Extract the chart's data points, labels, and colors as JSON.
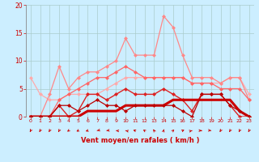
{
  "x": [
    0,
    1,
    2,
    3,
    4,
    5,
    6,
    7,
    8,
    9,
    10,
    11,
    12,
    13,
    14,
    15,
    16,
    17,
    18,
    19,
    20,
    21,
    22,
    23
  ],
  "series": [
    {
      "y": [
        7,
        4,
        3,
        3,
        4,
        4,
        4,
        4,
        5,
        6,
        7,
        7,
        7,
        7,
        7,
        7,
        7,
        6,
        6,
        6,
        6,
        7,
        7,
        4
      ],
      "color": "#ffaaaa",
      "lw": 0.9,
      "marker": "D",
      "ms": 2
    },
    {
      "y": [
        0,
        0,
        4,
        9,
        5,
        7,
        8,
        8,
        9,
        10,
        14,
        11,
        11,
        11,
        18,
        16,
        11,
        7,
        7,
        7,
        6,
        7,
        7,
        3
      ],
      "color": "#ff8888",
      "lw": 0.9,
      "marker": "D",
      "ms": 2
    },
    {
      "y": [
        0,
        0,
        0,
        3,
        4,
        5,
        6,
        7,
        7,
        8,
        9,
        8,
        7,
        7,
        7,
        7,
        7,
        6,
        6,
        6,
        5,
        5,
        5,
        3
      ],
      "color": "#ff6666",
      "lw": 0.9,
      "marker": "D",
      "ms": 2
    },
    {
      "y": [
        0,
        0,
        0,
        2,
        0,
        1,
        4,
        4,
        3,
        4,
        5,
        4,
        4,
        4,
        5,
        4,
        3,
        1,
        4,
        4,
        4,
        2,
        0,
        0
      ],
      "color": "#dd2222",
      "lw": 1.0,
      "marker": "D",
      "ms": 2
    },
    {
      "y": [
        0,
        0,
        0,
        0,
        0,
        0,
        1,
        1,
        1,
        1,
        2,
        2,
        2,
        2,
        2,
        3,
        3,
        3,
        3,
        3,
        3,
        3,
        1,
        0
      ],
      "color": "#cc0000",
      "lw": 2.2,
      "marker": null,
      "ms": 0
    },
    {
      "y": [
        0,
        0,
        0,
        2,
        2,
        1,
        2,
        3,
        2,
        2,
        1,
        2,
        2,
        2,
        2,
        2,
        1,
        0,
        4,
        4,
        4,
        2,
        1,
        0
      ],
      "color": "#bb0000",
      "lw": 0.9,
      "marker": "D",
      "ms": 2
    }
  ],
  "xlabel": "Vent moyen/en rafales ( km/h )",
  "xlim": [
    -0.5,
    23.5
  ],
  "ylim": [
    0,
    20
  ],
  "yticks": [
    0,
    5,
    10,
    15,
    20
  ],
  "xticks": [
    0,
    1,
    2,
    3,
    4,
    5,
    6,
    7,
    8,
    9,
    10,
    11,
    12,
    13,
    14,
    15,
    16,
    17,
    18,
    19,
    20,
    21,
    22,
    23
  ],
  "bg_color": "#cceeff",
  "grid_color": "#aacccc",
  "tick_color": "#cc0000",
  "label_color": "#cc0000",
  "fig_bg": "#cceeff",
  "arrow_angles": [
    200,
    200,
    200,
    200,
    220,
    230,
    240,
    250,
    260,
    280,
    290,
    300,
    320,
    340,
    10,
    30,
    50,
    70,
    90,
    100,
    200,
    200,
    200,
    200
  ]
}
